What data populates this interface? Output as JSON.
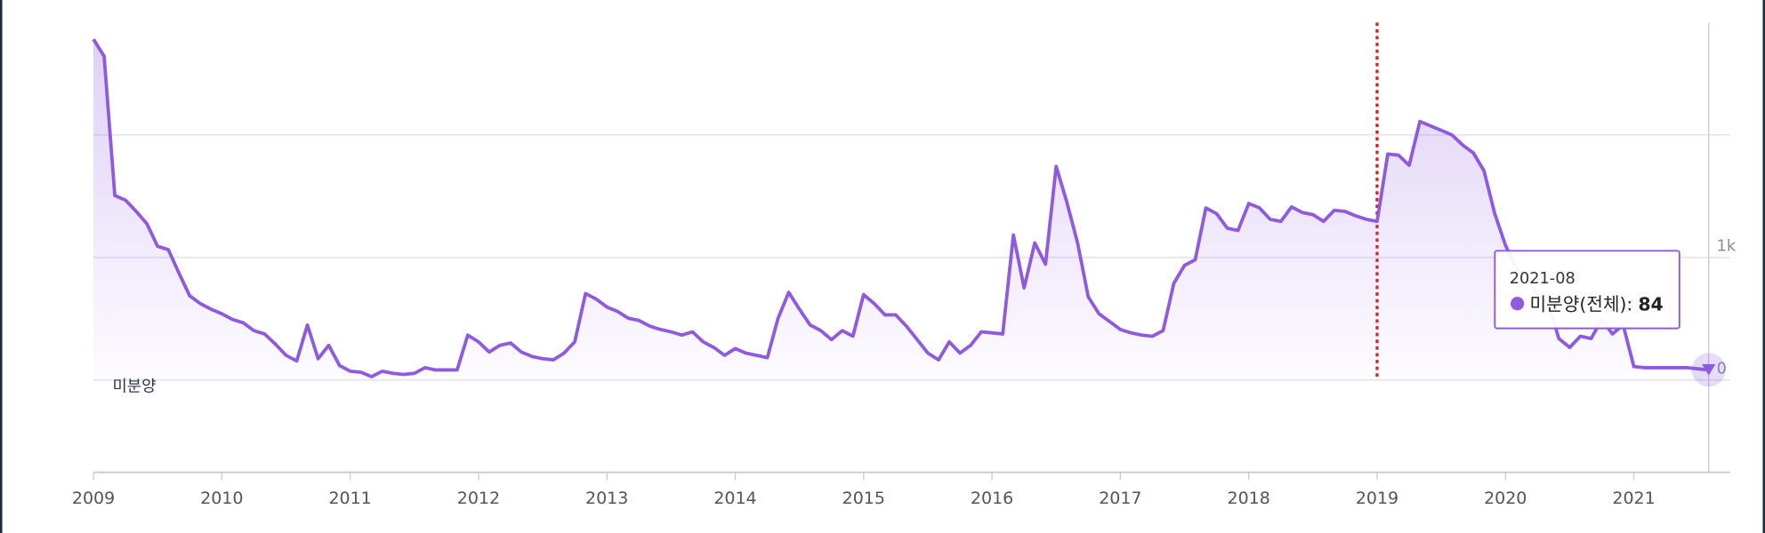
{
  "chart_data": {
    "type": "line",
    "x": [
      "2009-01",
      "2009-02",
      "2009-03",
      "2009-04",
      "2009-05",
      "2009-06",
      "2009-07",
      "2009-08",
      "2009-09",
      "2009-10",
      "2009-11",
      "2009-12",
      "2010-01",
      "2010-02",
      "2010-03",
      "2010-04",
      "2010-05",
      "2010-06",
      "2010-07",
      "2010-08",
      "2010-09",
      "2010-10",
      "2010-11",
      "2010-12",
      "2011-01",
      "2011-02",
      "2011-03",
      "2011-04",
      "2011-05",
      "2011-06",
      "2011-07",
      "2011-08",
      "2011-09",
      "2011-10",
      "2011-11",
      "2011-12",
      "2012-01",
      "2012-02",
      "2012-03",
      "2012-04",
      "2012-05",
      "2012-06",
      "2012-07",
      "2012-08",
      "2012-09",
      "2012-10",
      "2012-11",
      "2012-12",
      "2013-01",
      "2013-02",
      "2013-03",
      "2013-04",
      "2013-05",
      "2013-06",
      "2013-07",
      "2013-08",
      "2013-09",
      "2013-10",
      "2013-11",
      "2013-12",
      "2014-01",
      "2014-02",
      "2014-03",
      "2014-04",
      "2014-05",
      "2014-06",
      "2014-07",
      "2014-08",
      "2014-09",
      "2014-10",
      "2014-11",
      "2014-12",
      "2015-01",
      "2015-02",
      "2015-03",
      "2015-04",
      "2015-05",
      "2015-06",
      "2015-07",
      "2015-08",
      "2015-09",
      "2015-10",
      "2015-11",
      "2015-12",
      "2016-01",
      "2016-02",
      "2016-03",
      "2016-04",
      "2016-05",
      "2016-06",
      "2016-07",
      "2016-08",
      "2016-09",
      "2016-10",
      "2016-11",
      "2016-12",
      "2017-01",
      "2017-02",
      "2017-03",
      "2017-04",
      "2017-05",
      "2017-06",
      "2017-07",
      "2017-08",
      "2017-09",
      "2017-10",
      "2017-11",
      "2017-12",
      "2018-01",
      "2018-02",
      "2018-03",
      "2018-04",
      "2018-05",
      "2018-06",
      "2018-07",
      "2018-08",
      "2018-09",
      "2018-10",
      "2018-11",
      "2018-12",
      "2019-01",
      "2019-02",
      "2019-03",
      "2019-04",
      "2019-05",
      "2019-06",
      "2019-07",
      "2019-08",
      "2019-09",
      "2019-10",
      "2019-11",
      "2019-12",
      "2020-01",
      "2020-02",
      "2020-03",
      "2020-04",
      "2020-05",
      "2020-06",
      "2020-07",
      "2020-08",
      "2020-09",
      "2020-10",
      "2020-11",
      "2020-12",
      "2021-01",
      "2021-02",
      "2021-03",
      "2021-04",
      "2021-05",
      "2021-06",
      "2021-07",
      "2021-08"
    ],
    "series": [
      {
        "name": "미분양",
        "color": "#8e5be0",
        "values": [
          2780,
          2642,
          1505,
          1468,
          1376,
          1275,
          1092,
          1064,
          872,
          688,
          624,
          578,
          541,
          495,
          468,
          404,
          376,
          294,
          202,
          156,
          450,
          174,
          284,
          119,
          73,
          64,
          28,
          73,
          55,
          46,
          55,
          101,
          83,
          83,
          83,
          367,
          312,
          229,
          284,
          303,
          229,
          193,
          174,
          165,
          220,
          312,
          706,
          661,
          596,
          560,
          505,
          486,
          440,
          413,
          394,
          367,
          394,
          312,
          266,
          202,
          257,
          220,
          202,
          183,
          505,
          716,
          578,
          450,
          404,
          330,
          404,
          358,
          697,
          624,
          532,
          532,
          440,
          330,
          220,
          165,
          312,
          220,
          284,
          394,
          385,
          376,
          1183,
          752,
          1119,
          945,
          1743,
          1450,
          1119,
          679,
          541,
          477,
          413,
          385,
          367,
          358,
          404,
          789,
          936,
          982,
          1404,
          1358,
          1239,
          1220,
          1440,
          1404,
          1312,
          1294,
          1413,
          1367,
          1349,
          1294,
          1385,
          1376,
          1339,
          1312,
          1294,
          1844,
          1835,
          1752,
          2110,
          2073,
          2037,
          2000,
          1917,
          1853,
          1706,
          1358,
          1101,
          917,
          835,
          697,
          624,
          339,
          266,
          358,
          339,
          495,
          376,
          450,
          110,
          101,
          101,
          101,
          101,
          101,
          92,
          84
        ]
      }
    ],
    "xlim": [
      "2009-01",
      "2021-10"
    ],
    "xticks": [
      2009,
      2010,
      2011,
      2012,
      2013,
      2014,
      2015,
      2016,
      2017,
      2018,
      2019,
      2020,
      2021
    ],
    "ylim": [
      -752,
      2917
    ],
    "yticks": [
      0,
      {
        "value": 1000,
        "label": "1k"
      },
      {
        "value": 2000,
        "label": null
      }
    ],
    "grid": true,
    "marker_x": "2019-01",
    "tooltip_label": "미분양(전체):"
  }
}
